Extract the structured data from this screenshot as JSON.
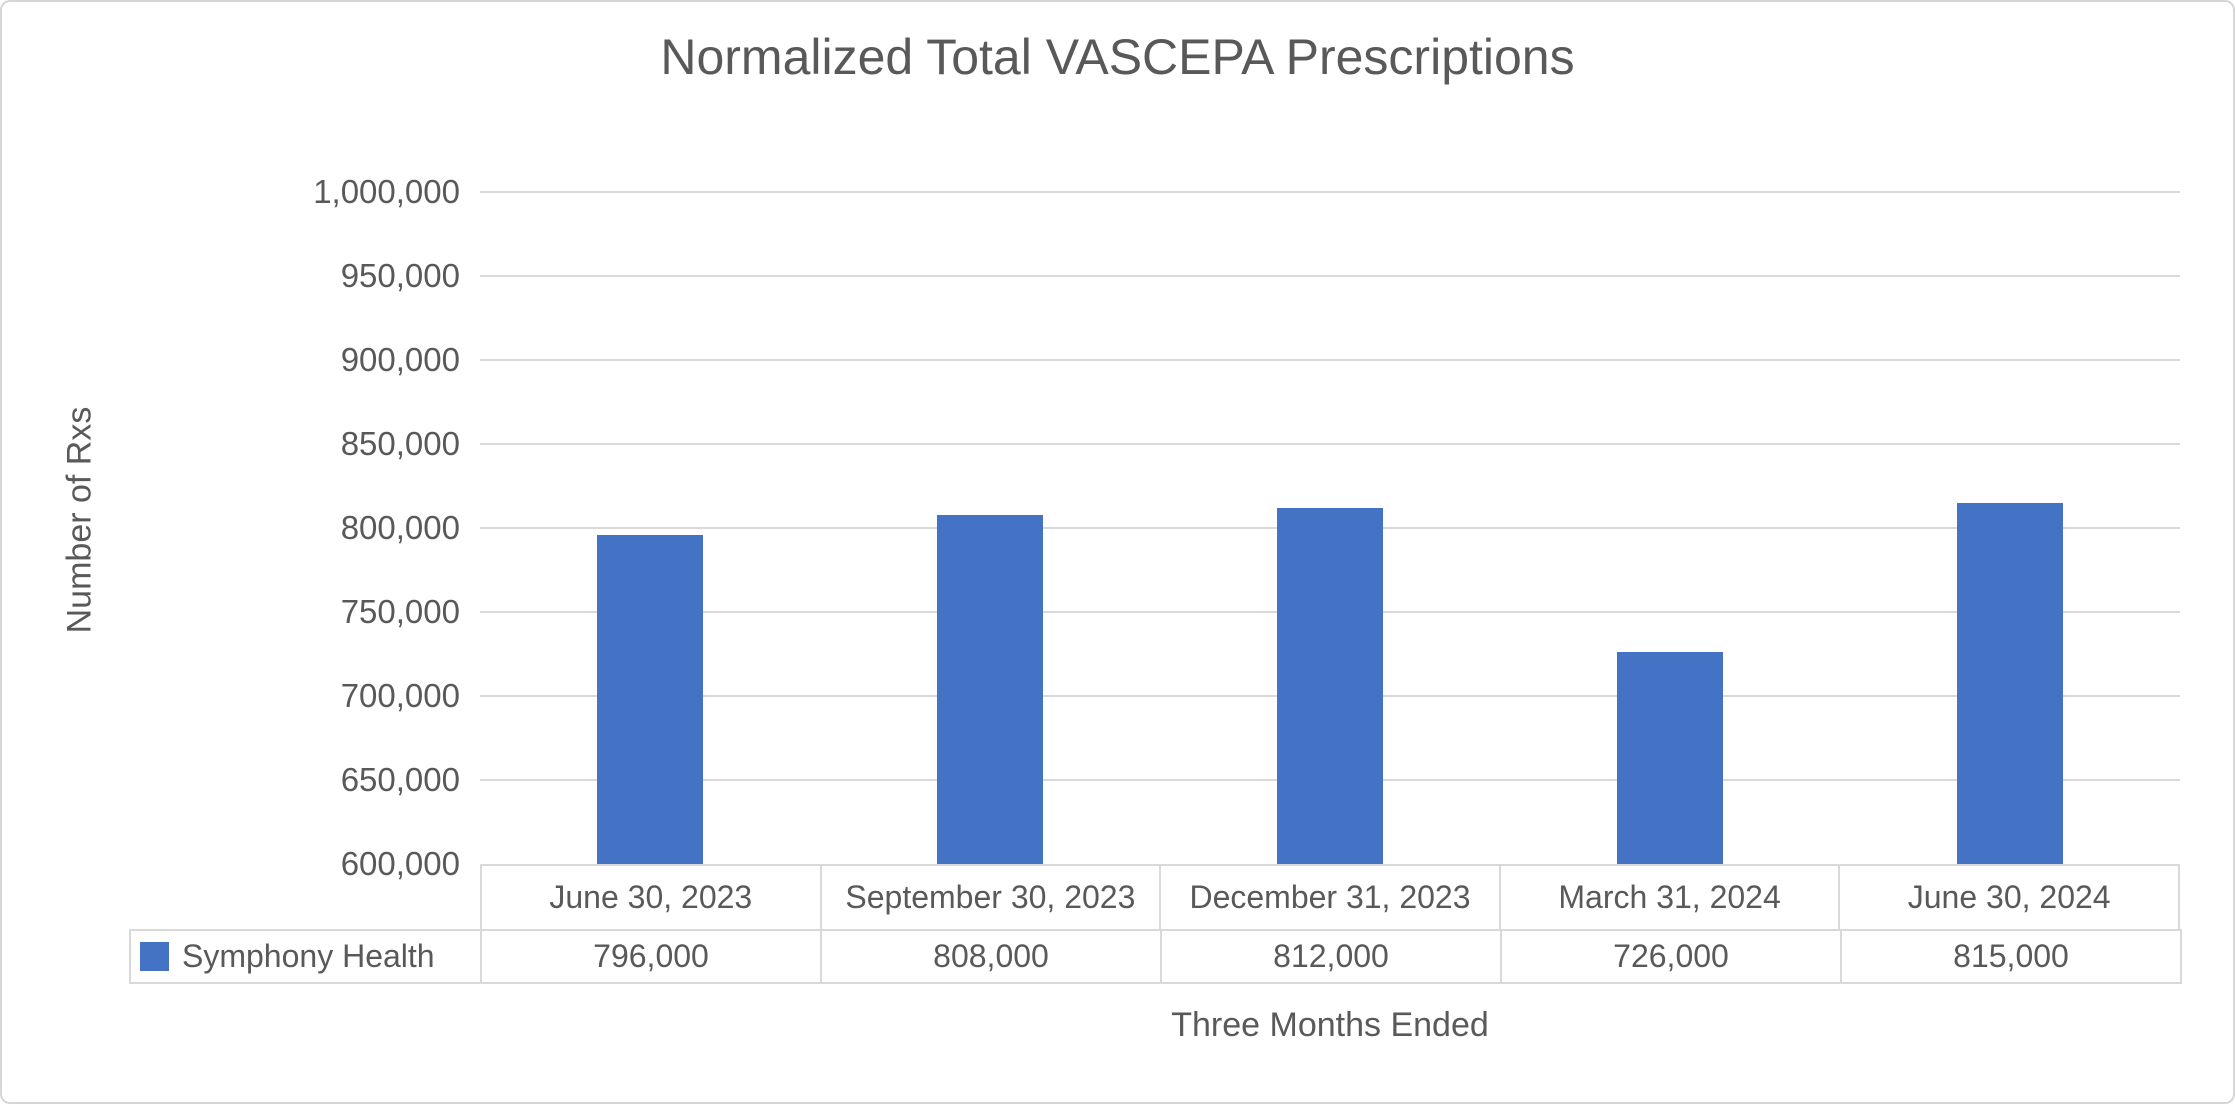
{
  "chart": {
    "title": "Normalized Total VASCEPA Prescriptions",
    "y_axis_title": "Number of Rxs",
    "x_axis_title": "Three Months Ended",
    "legend_label": "Symphony Health"
  },
  "chart_data": {
    "type": "bar",
    "title": "Normalized Total VASCEPA Prescriptions",
    "xlabel": "Three Months Ended",
    "ylabel": "Number of Rxs",
    "categories": [
      "June 30, 2023",
      "September 30, 2023",
      "December 31, 2023",
      "March 31, 2024",
      "June 30, 2024"
    ],
    "series": [
      {
        "name": "Symphony Health",
        "values": [
          796000,
          808000,
          812000,
          726000,
          815000
        ],
        "value_labels": [
          "796,000",
          "808,000",
          "812,000",
          "726,000",
          "815,000"
        ],
        "color": "#4472C4"
      }
    ],
    "ylim": [
      600000,
      1000000
    ],
    "yticks": [
      {
        "value": 1000000,
        "label": "1,000,000"
      },
      {
        "value": 950000,
        "label": "950,000"
      },
      {
        "value": 900000,
        "label": "900,000"
      },
      {
        "value": 850000,
        "label": "850,000"
      },
      {
        "value": 800000,
        "label": "800,000"
      },
      {
        "value": 750000,
        "label": "750,000"
      },
      {
        "value": 700000,
        "label": "700,000"
      },
      {
        "value": 650000,
        "label": "650,000"
      },
      {
        "value": 600000,
        "label": "600,000"
      }
    ],
    "grid": true,
    "legend_position": "bottom-table",
    "data_table_shown": true
  },
  "colors": {
    "bar": "#4472C4",
    "gridline": "#D9D9D9",
    "table_border": "#D9D9D9",
    "text": "#595959",
    "background": "#FFFFFF"
  }
}
